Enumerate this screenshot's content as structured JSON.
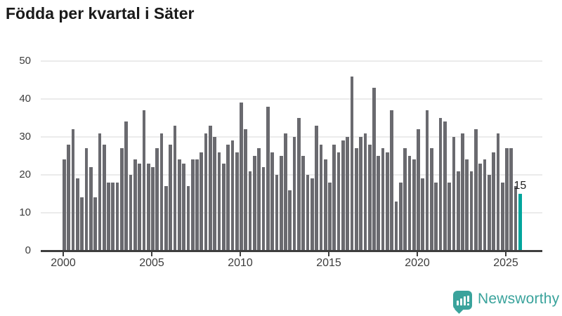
{
  "header": {
    "title": "Födda per kvartal i Säter"
  },
  "chart_data": {
    "type": "bar",
    "title": "Födda per kvartal i Säter",
    "xlabel": "",
    "ylabel": "",
    "ylim": [
      0,
      50
    ],
    "y_ticks": [
      0,
      10,
      20,
      30,
      40,
      50
    ],
    "x_tick_years": [
      2000,
      2005,
      2010,
      2015,
      2020,
      2025
    ],
    "grid": "horizontal",
    "legend": "none",
    "categories": [
      "2000Q1",
      "2000Q2",
      "2000Q3",
      "2000Q4",
      "2001Q1",
      "2001Q2",
      "2001Q3",
      "2001Q4",
      "2002Q1",
      "2002Q2",
      "2002Q3",
      "2002Q4",
      "2003Q1",
      "2003Q2",
      "2003Q3",
      "2003Q4",
      "2004Q1",
      "2004Q2",
      "2004Q3",
      "2004Q4",
      "2005Q1",
      "2005Q2",
      "2005Q3",
      "2005Q4",
      "2006Q1",
      "2006Q2",
      "2006Q3",
      "2006Q4",
      "2007Q1",
      "2007Q2",
      "2007Q3",
      "2007Q4",
      "2008Q1",
      "2008Q2",
      "2008Q3",
      "2008Q4",
      "2009Q1",
      "2009Q2",
      "2009Q3",
      "2009Q4",
      "2010Q1",
      "2010Q2",
      "2010Q3",
      "2010Q4",
      "2011Q1",
      "2011Q2",
      "2011Q3",
      "2011Q4",
      "2012Q1",
      "2012Q2",
      "2012Q3",
      "2012Q4",
      "2013Q1",
      "2013Q2",
      "2013Q3",
      "2013Q4",
      "2014Q1",
      "2014Q2",
      "2014Q3",
      "2014Q4",
      "2015Q1",
      "2015Q2",
      "2015Q3",
      "2015Q4",
      "2016Q1",
      "2016Q2",
      "2016Q3",
      "2016Q4",
      "2017Q1",
      "2017Q2",
      "2017Q3",
      "2017Q4",
      "2018Q1",
      "2018Q2",
      "2018Q3",
      "2018Q4",
      "2019Q1",
      "2019Q2",
      "2019Q3",
      "2019Q4",
      "2020Q1",
      "2020Q2",
      "2020Q3",
      "2020Q4",
      "2021Q1",
      "2021Q2",
      "2021Q3",
      "2021Q4",
      "2022Q1",
      "2022Q2",
      "2022Q3",
      "2022Q4",
      "2023Q1",
      "2023Q2",
      "2023Q3",
      "2023Q4",
      "2024Q1",
      "2024Q2",
      "2024Q3",
      "2024Q4",
      "2025Q1",
      "2025Q2",
      "2025Q3",
      "2025Q4"
    ],
    "values": [
      24,
      28,
      32,
      19,
      14,
      27,
      22,
      14,
      31,
      28,
      18,
      18,
      18,
      27,
      34,
      20,
      24,
      23,
      37,
      23,
      22,
      27,
      31,
      17,
      28,
      33,
      24,
      23,
      17,
      24,
      24,
      26,
      31,
      33,
      30,
      26,
      23,
      28,
      29,
      26,
      39,
      32,
      21,
      25,
      27,
      22,
      38,
      26,
      20,
      25,
      31,
      16,
      30,
      35,
      25,
      20,
      19,
      33,
      28,
      24,
      18,
      28,
      26,
      29,
      30,
      46,
      27,
      30,
      31,
      28,
      43,
      25,
      27,
      26,
      37,
      13,
      18,
      27,
      25,
      24,
      32,
      19,
      37,
      27,
      18,
      35,
      34,
      18,
      30,
      21,
      31,
      24,
      21,
      32,
      23,
      24,
      20,
      26,
      31,
      18,
      27,
      27,
      17,
      15
    ],
    "highlight": {
      "index": 103,
      "category": "2025Q4",
      "value": 15,
      "label": "15"
    },
    "colors": {
      "bar": "#6a6a6f",
      "highlight": "#00a59c",
      "grid": "#ebebeb",
      "axis": "#3e3e3e",
      "tick_label": "#3c3c3c",
      "title": "#1a1a1a"
    }
  },
  "footer": {
    "logo_text": "Newsworthy",
    "logo_color": "#3aa39c",
    "logo_icon": "bar-chart-speech-bubble"
  }
}
